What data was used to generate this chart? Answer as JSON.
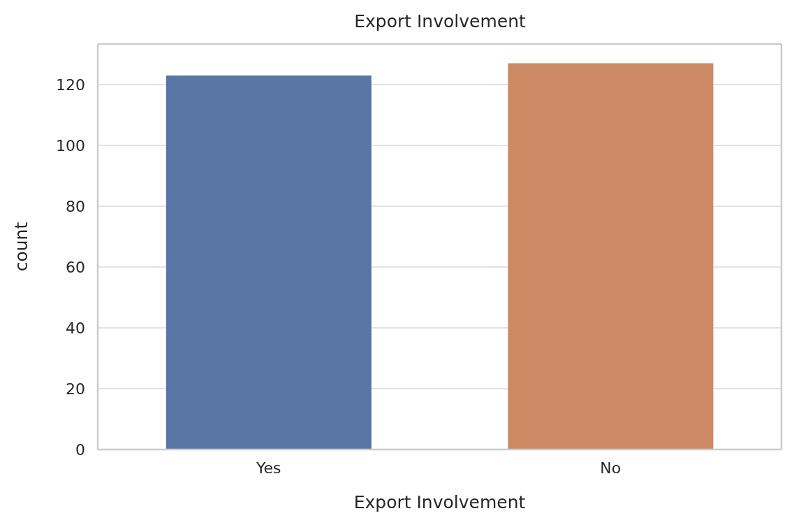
{
  "chart_data": {
    "type": "bar",
    "title": "Export Involvement",
    "xlabel": "Export Involvement",
    "ylabel": "count",
    "categories": [
      "Yes",
      "No"
    ],
    "values": [
      123,
      127
    ],
    "colors": [
      "#5875a4",
      "#cc8963"
    ],
    "ylim": [
      0,
      133.35
    ],
    "yticks": [
      0,
      20,
      40,
      60,
      80,
      100,
      120
    ],
    "grid": "y"
  }
}
